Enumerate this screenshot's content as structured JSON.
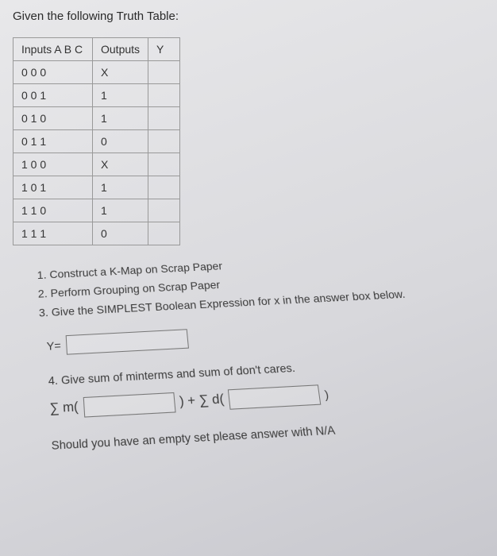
{
  "heading": "Given the following Truth Table:",
  "table": {
    "headers": {
      "inputs": "Inputs  A B C",
      "outputs": "Outputs",
      "y": "Y"
    },
    "rows": [
      {
        "abc": "0 0 0",
        "out": "X"
      },
      {
        "abc": "0 0 1",
        "out": "1"
      },
      {
        "abc": "0 1 0",
        "out": "1"
      },
      {
        "abc": "0 1 1",
        "out": "0"
      },
      {
        "abc": "1 0 0",
        "out": "X"
      },
      {
        "abc": "1 0 1",
        "out": "1"
      },
      {
        "abc": "1 1 0",
        "out": "1"
      },
      {
        "abc": "1 1 1",
        "out": "0"
      }
    ]
  },
  "steps": {
    "s1": "Construct a K-Map on Scrap Paper",
    "s2": "Perform Grouping on Scrap Paper",
    "s3": "Give the SIMPLEST Boolean Expression for x in the answer box below."
  },
  "labels": {
    "yeq": "Y=",
    "q4": "4. Give sum of minterms and sum of don't cares.",
    "sum_m_pre": "∑ m(",
    "plus_sum_d_pre": ") + ∑ d(",
    "close": ")",
    "note": "Should you have an empty set please answer with N/A"
  }
}
